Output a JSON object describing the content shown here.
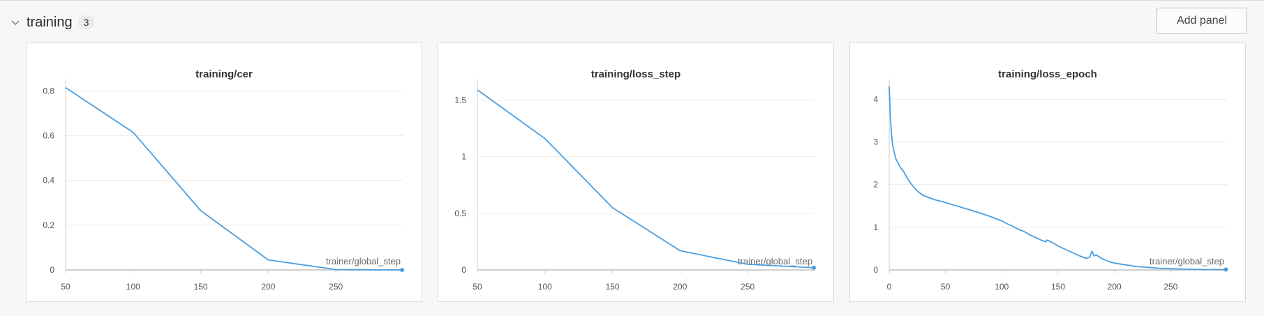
{
  "section": {
    "title": "training",
    "count": "3"
  },
  "toolbar": {
    "add_panel_label": "Add panel"
  },
  "icons": {
    "collapse": "chevron-down-icon"
  },
  "colors": {
    "series": "#4a9ee0",
    "grid": "#ececec",
    "axis": "#cfcfcf"
  },
  "chart_data": [
    {
      "type": "line",
      "title": "training/cer",
      "xlabel": "trainer/global_step",
      "ylabel": "",
      "xlim": [
        50,
        300
      ],
      "ylim": [
        0,
        0.82
      ],
      "xticks": [
        50,
        100,
        150,
        200,
        250
      ],
      "yticks": [
        0,
        0.2,
        0.4,
        0.6,
        0.8
      ],
      "ytick_labels": [
        "0",
        "0.2",
        "0.4",
        "0.6",
        "0.8"
      ],
      "grid": true,
      "series": [
        {
          "x": [
            50,
            100,
            150,
            200,
            250,
            299
          ],
          "y": [
            0.815,
            0.615,
            0.265,
            0.045,
            0.002,
            0.0
          ]
        }
      ]
    },
    {
      "type": "line",
      "title": "training/loss_step",
      "xlabel": "trainer/global_step",
      "ylabel": "",
      "xlim": [
        50,
        300
      ],
      "ylim": [
        0,
        1.62
      ],
      "xticks": [
        50,
        100,
        150,
        200,
        250
      ],
      "yticks": [
        0,
        0.5,
        1,
        1.5
      ],
      "ytick_labels": [
        "0",
        "0.5",
        "1",
        "1.5"
      ],
      "grid": true,
      "series": [
        {
          "x": [
            50,
            100,
            150,
            200,
            250,
            299
          ],
          "y": [
            1.59,
            1.16,
            0.55,
            0.17,
            0.05,
            0.02
          ]
        }
      ]
    },
    {
      "type": "line",
      "title": "training/loss_epoch",
      "xlabel": "trainer/global_step",
      "ylabel": "",
      "xlim": [
        0,
        300
      ],
      "ylim": [
        0,
        4.3
      ],
      "xticks": [
        0,
        50,
        100,
        150,
        200,
        250
      ],
      "yticks": [
        0,
        1,
        2,
        3,
        4
      ],
      "ytick_labels": [
        "0",
        "1",
        "2",
        "3",
        "4"
      ],
      "grid": true,
      "series": [
        {
          "x": [
            0,
            1,
            2,
            3,
            4,
            6,
            8,
            10,
            13,
            16,
            20,
            25,
            30,
            40,
            50,
            60,
            70,
            80,
            90,
            100,
            105,
            110,
            115,
            120,
            125,
            130,
            135,
            139,
            140,
            142,
            145,
            150,
            155,
            160,
            165,
            170,
            175,
            178,
            180,
            182,
            184,
            187,
            190,
            195,
            200,
            210,
            220,
            230,
            240,
            250,
            260,
            270,
            280,
            290,
            299
          ],
          "y": [
            4.3,
            3.6,
            3.2,
            2.95,
            2.8,
            2.6,
            2.5,
            2.4,
            2.3,
            2.15,
            2.0,
            1.85,
            1.75,
            1.65,
            1.58,
            1.5,
            1.42,
            1.34,
            1.25,
            1.15,
            1.08,
            1.02,
            0.95,
            0.9,
            0.82,
            0.76,
            0.7,
            0.66,
            0.7,
            0.68,
            0.64,
            0.56,
            0.5,
            0.44,
            0.38,
            0.32,
            0.27,
            0.3,
            0.44,
            0.33,
            0.35,
            0.3,
            0.25,
            0.2,
            0.16,
            0.12,
            0.08,
            0.06,
            0.04,
            0.03,
            0.02,
            0.015,
            0.01,
            0.01,
            0.01
          ]
        }
      ]
    }
  ]
}
